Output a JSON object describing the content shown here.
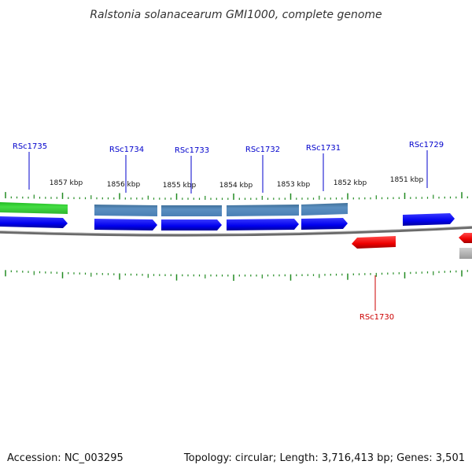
{
  "title": "Ralstonia solanacearum GMI1000, complete genome",
  "footer": {
    "accession": "Accession: NC_003295",
    "summary": "Topology: circular; Length: 3,716,413 bp; Genes: 3,501"
  },
  "colors": {
    "forward_gene": "#0000ff",
    "reverse_gene": "#ff0000",
    "steelblue_feature": "#4a7fb5",
    "green_feature": "#33cc33",
    "backbone": "#888888",
    "ticks": "#228b22",
    "forward_label": "#0000cc",
    "reverse_label": "#cc0000"
  },
  "kbp_labels": [
    "1857 kbp",
    "1856 kbp",
    "1855 kbp",
    "1854 kbp",
    "1853 kbp",
    "1852 kbp",
    "1851 kbp"
  ],
  "genes": [
    {
      "id": "RSc1735",
      "strand": "forward"
    },
    {
      "id": "RSc1734",
      "strand": "forward"
    },
    {
      "id": "RSc1733",
      "strand": "forward"
    },
    {
      "id": "RSc1732",
      "strand": "forward"
    },
    {
      "id": "RSc1731",
      "strand": "forward"
    },
    {
      "id": "RSc1729",
      "strand": "forward"
    },
    {
      "id": "RSc1730",
      "strand": "reverse"
    }
  ]
}
